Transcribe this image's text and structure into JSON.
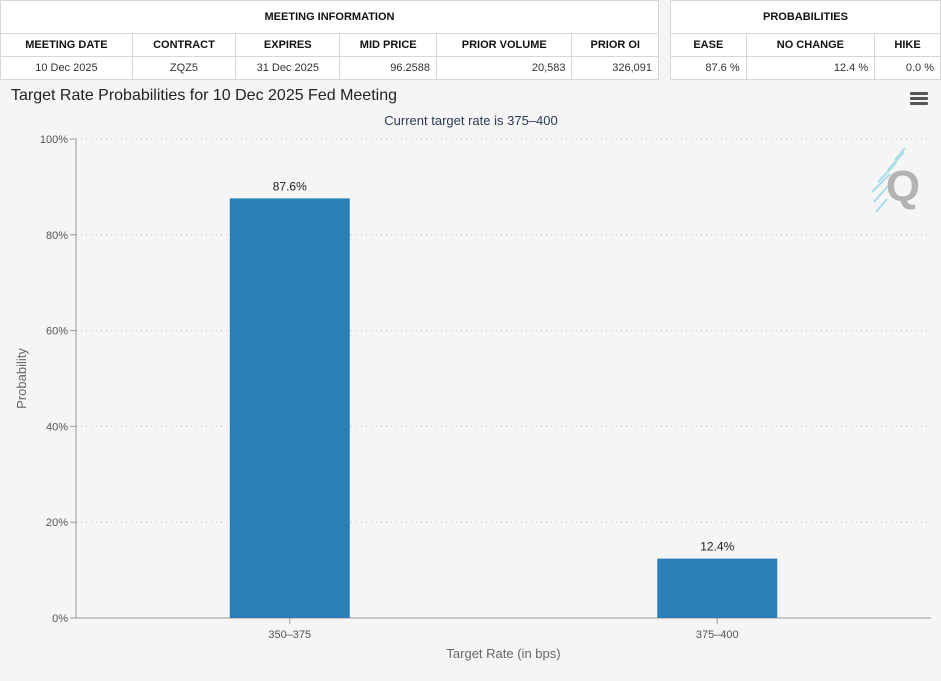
{
  "meeting_table": {
    "header": "MEETING INFORMATION",
    "columns": [
      "MEETING DATE",
      "CONTRACT",
      "EXPIRES",
      "MID PRICE",
      "PRIOR VOLUME",
      "PRIOR OI"
    ],
    "row": [
      "10 Dec 2025",
      "ZQZ5",
      "31 Dec 2025",
      "96.2588",
      "20,583",
      "326,091"
    ]
  },
  "prob_table": {
    "header": "PROBABILITIES",
    "columns": [
      "EASE",
      "NO CHANGE",
      "HIKE"
    ],
    "row": [
      "87.6 %",
      "12.4 %",
      "0.0 %"
    ]
  },
  "menu": {
    "icon": "hamburger-menu-icon"
  },
  "logo": {
    "icon": "q-logo-icon",
    "text": "Q"
  },
  "colors": {
    "bar": "#2a7fb8",
    "grid": "#cccccc"
  },
  "chart_data": {
    "type": "bar",
    "title": "Target Rate Probabilities for 10 Dec 2025 Fed Meeting",
    "subtitle": "Current target rate is 375–400",
    "xlabel": "Target Rate (in bps)",
    "ylabel": "Probability",
    "categories": [
      "350–375",
      "375–400"
    ],
    "values": [
      87.6,
      12.4
    ],
    "data_labels": [
      "87.6%",
      "12.4%"
    ],
    "ylim": [
      0,
      100
    ],
    "yticks": [
      0,
      20,
      40,
      60,
      80,
      100
    ],
    "ytick_labels": [
      "0%",
      "20%",
      "40%",
      "60%",
      "80%",
      "100%"
    ],
    "grid": true,
    "legend": "none"
  }
}
